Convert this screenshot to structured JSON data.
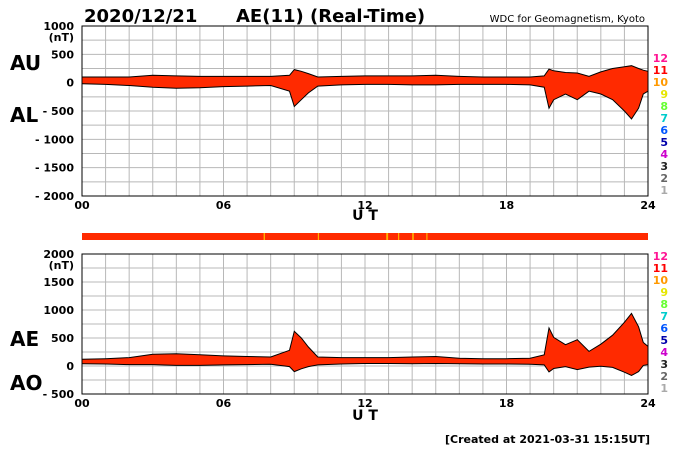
{
  "header": {
    "date": "2020/12/21",
    "title": "AE(11) (Real-Time)",
    "source": "WDC for Geomagnetism, Kyoto"
  },
  "footer": {
    "created": "[Created at 2021-03-31 15:15UT]"
  },
  "station_legend": [
    "12",
    "11",
    "10",
    "9",
    "8",
    "7",
    "6",
    "5",
    "4",
    "3",
    "2",
    "1"
  ],
  "station_colors": [
    "#ff1493",
    "#ff0000",
    "#ff9900",
    "#e6e600",
    "#66ff33",
    "#00cccc",
    "#0055ff",
    "#0000aa",
    "#cc00cc",
    "#222222",
    "#666666",
    "#aaaaaa"
  ],
  "colors": {
    "fill": "#ff2a00",
    "line": "#000000",
    "grid": "#b8b8b8",
    "highlight": "#ffb000"
  },
  "chart_data": [
    {
      "type": "area",
      "panel": "AU/AL",
      "series_labels": [
        "AU",
        "AL"
      ],
      "xlabel": "U T",
      "ylabel": "(nT)",
      "xticks": [
        "00",
        "06",
        "12",
        "18",
        "24"
      ],
      "xlim": [
        0,
        24
      ],
      "yticks": [
        "1000",
        "500",
        "0",
        "- 500",
        "- 1000",
        "- 1500",
        "- 2000"
      ],
      "ylim": [
        -2000,
        1000
      ],
      "x": [
        0,
        1,
        2,
        3,
        4,
        5,
        6,
        7,
        8,
        8.8,
        9,
        9.3,
        9.6,
        10,
        11,
        12,
        13,
        14,
        15,
        16,
        17,
        18,
        19,
        19.6,
        19.8,
        20,
        20.5,
        21,
        21.5,
        22,
        22.5,
        23,
        23.3,
        23.6,
        23.8,
        24
      ],
      "series": [
        {
          "name": "AU",
          "values": [
            100,
            100,
            100,
            130,
            120,
            110,
            110,
            110,
            110,
            130,
            230,
            200,
            160,
            100,
            110,
            120,
            120,
            120,
            130,
            110,
            100,
            100,
            100,
            120,
            240,
            210,
            180,
            170,
            110,
            190,
            250,
            280,
            300,
            250,
            220,
            200
          ]
        },
        {
          "name": "AL",
          "values": [
            -20,
            -30,
            -50,
            -80,
            -100,
            -90,
            -70,
            -60,
            -50,
            -150,
            -420,
            -300,
            -180,
            -60,
            -40,
            -30,
            -30,
            -40,
            -40,
            -30,
            -30,
            -30,
            -40,
            -80,
            -450,
            -300,
            -200,
            -300,
            -150,
            -200,
            -300,
            -500,
            -640,
            -450,
            -200,
            -150
          ]
        }
      ]
    },
    {
      "type": "area",
      "panel": "AE/AO",
      "series_labels": [
        "AE",
        "AO"
      ],
      "xlabel": "U T",
      "ylabel": "(nT)",
      "xticks": [
        "00",
        "06",
        "12",
        "18",
        "24"
      ],
      "xlim": [
        0,
        24
      ],
      "yticks": [
        "2000",
        "1500",
        "1000",
        "500",
        "0",
        "- 500"
      ],
      "ylim": [
        -500,
        2000
      ],
      "x": [
        0,
        1,
        2,
        3,
        4,
        5,
        6,
        7,
        8,
        8.8,
        9,
        9.3,
        9.6,
        10,
        11,
        12,
        13,
        14,
        15,
        16,
        17,
        18,
        19,
        19.6,
        19.8,
        20,
        20.5,
        21,
        21.5,
        22,
        22.5,
        23,
        23.3,
        23.6,
        23.8,
        24
      ],
      "series": [
        {
          "name": "AE",
          "values": [
            120,
            130,
            150,
            210,
            220,
            200,
            180,
            170,
            160,
            280,
            620,
            500,
            340,
            160,
            150,
            150,
            150,
            160,
            170,
            140,
            130,
            130,
            140,
            200,
            680,
            510,
            380,
            470,
            260,
            390,
            550,
            780,
            940,
            700,
            420,
            350
          ]
        },
        {
          "name": "AO",
          "values": [
            40,
            35,
            25,
            25,
            10,
            10,
            20,
            25,
            30,
            -10,
            -100,
            -50,
            -10,
            20,
            35,
            45,
            45,
            40,
            45,
            40,
            35,
            35,
            30,
            20,
            -105,
            -45,
            -10,
            -65,
            -20,
            -5,
            -25,
            -110,
            -170,
            -100,
            10,
            25
          ]
        }
      ]
    }
  ]
}
